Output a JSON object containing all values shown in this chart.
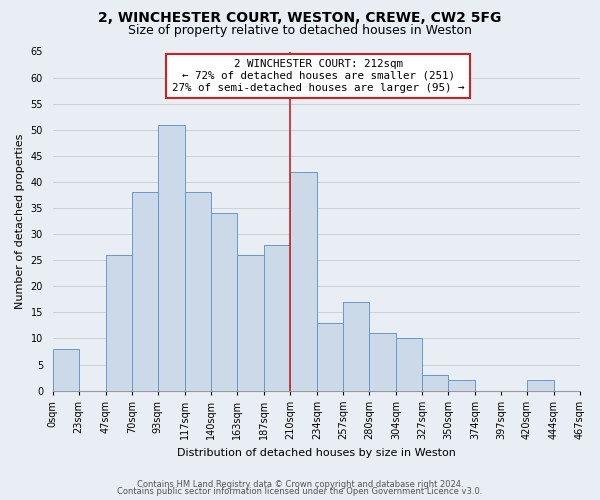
{
  "title1": "2, WINCHESTER COURT, WESTON, CREWE, CW2 5FG",
  "title2": "Size of property relative to detached houses in Weston",
  "xlabel": "Distribution of detached houses by size in Weston",
  "ylabel": "Number of detached properties",
  "footer1": "Contains HM Land Registry data © Crown copyright and database right 2024.",
  "footer2": "Contains public sector information licensed under the Open Government Licence v3.0.",
  "bin_edges": [
    0,
    23,
    47,
    70,
    93,
    117,
    140,
    163,
    187,
    210,
    234,
    257,
    280,
    304,
    327,
    350,
    374,
    397,
    420,
    444,
    467
  ],
  "bin_labels": [
    "0sqm",
    "23sqm",
    "47sqm",
    "70sqm",
    "93sqm",
    "117sqm",
    "140sqm",
    "163sqm",
    "187sqm",
    "210sqm",
    "234sqm",
    "257sqm",
    "280sqm",
    "304sqm",
    "327sqm",
    "350sqm",
    "374sqm",
    "397sqm",
    "420sqm",
    "444sqm",
    "467sqm"
  ],
  "bar_heights": [
    8,
    0,
    26,
    38,
    51,
    38,
    34,
    26,
    28,
    42,
    13,
    17,
    11,
    10,
    3,
    2,
    0,
    0,
    2,
    0
  ],
  "bar_color": "#ccd9e8",
  "bar_edge_color": "#6699cc",
  "property_line_x": 210,
  "property_line_color": "#cc2222",
  "annotation_line1": "2 WINCHESTER COURT: 212sqm",
  "annotation_line2": "← 72% of detached houses are smaller (251)",
  "annotation_line3": "27% of semi-detached houses are larger (95) →",
  "annotation_box_color": "#ffffff",
  "annotation_box_edge": "#cc2222",
  "ylim": [
    0,
    65
  ],
  "yticks": [
    0,
    5,
    10,
    15,
    20,
    25,
    30,
    35,
    40,
    45,
    50,
    55,
    60,
    65
  ],
  "grid_color": "#cccccc",
  "bg_color": "#e8eef4",
  "plot_bg_color": "#e8eef4",
  "title1_fontsize": 10,
  "title2_fontsize": 9,
  "ylabel_fontsize": 8,
  "xlabel_fontsize": 8,
  "tick_fontsize": 7,
  "footer_fontsize": 6
}
